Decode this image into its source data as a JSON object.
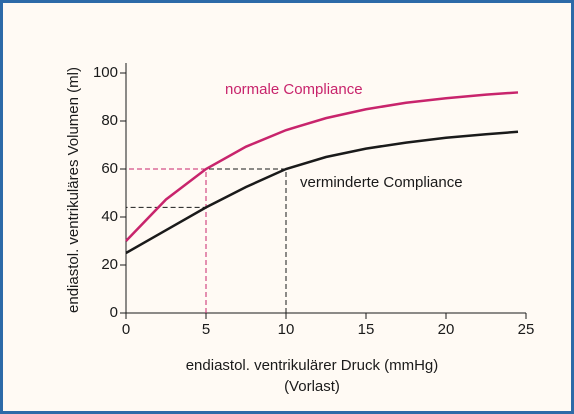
{
  "chart_data": {
    "type": "line",
    "xlabel": [
      "endiastol. ventrikulärer Druck (mmHg)",
      "(Vorlast)"
    ],
    "ylabel": "endiastol. ventrikuläres Volumen (ml)",
    "x": [
      0,
      2.5,
      5,
      7.5,
      10,
      12.5,
      15,
      17.5,
      20,
      22.5,
      24.5
    ],
    "series": [
      {
        "name": "normale Compliance",
        "color": "#c8246c",
        "values": [
          30,
          47.3,
          60,
          69.3,
          76.2,
          81.2,
          84.9,
          87.6,
          89.5,
          91.0,
          91.9
        ]
      },
      {
        "name": "verminderte Compliance",
        "color": "#1a1a1a",
        "values": [
          25,
          34.5,
          44,
          52.5,
          60,
          65,
          68.5,
          71,
          73,
          74.5,
          75.5
        ]
      }
    ],
    "guides": [
      {
        "x": 10,
        "y": 60,
        "color": "#1a1a1a"
      },
      {
        "x": 5,
        "y": 44,
        "color": "#1a1a1a"
      },
      {
        "x": 5,
        "y": 60,
        "color": "#c8246c"
      }
    ],
    "xlim": [
      0,
      25
    ],
    "xticks": [
      0,
      5,
      10,
      15,
      20,
      25
    ],
    "ylim": [
      0,
      100
    ],
    "yticks": [
      0,
      20,
      40,
      60,
      80,
      100
    ]
  }
}
